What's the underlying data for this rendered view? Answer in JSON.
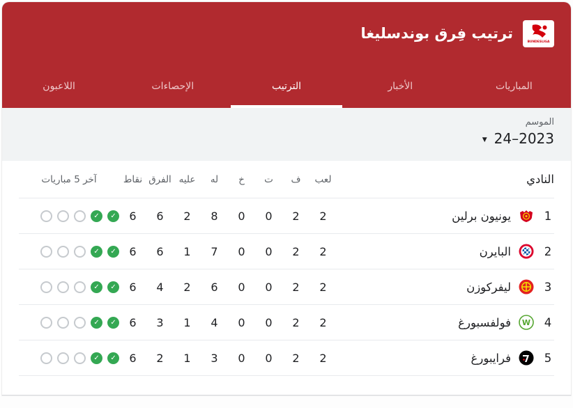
{
  "header": {
    "title": "ترتيب فِرق بوندسليغا",
    "logo_text": "BUNDESLIGA"
  },
  "tabs": [
    {
      "label": "المباريات",
      "active": false
    },
    {
      "label": "الأخبار",
      "active": false
    },
    {
      "label": "الترتيب",
      "active": true
    },
    {
      "label": "الإحصاءات",
      "active": false
    },
    {
      "label": "اللاعبون",
      "active": false
    }
  ],
  "season": {
    "label": "الموسم",
    "value": "2023–24"
  },
  "table": {
    "columns": {
      "club": "النادي",
      "played": "لعب",
      "won": "ف",
      "drawn": "ت",
      "lost": "خ",
      "gf": "له",
      "ga": "عليه",
      "diff": "الفرق",
      "points": "نقاط",
      "last5": "آخر 5 مباريات"
    },
    "rows": [
      {
        "rank": "1",
        "name": "يونيون برلين",
        "crest": "union-berlin",
        "played": "2",
        "won": "2",
        "drawn": "0",
        "lost": "0",
        "gf": "8",
        "ga": "2",
        "diff": "6",
        "points": "6",
        "last5": [
          "win",
          "win",
          "none",
          "none",
          "none"
        ]
      },
      {
        "rank": "2",
        "name": "البايرن",
        "crest": "bayern",
        "played": "2",
        "won": "2",
        "drawn": "0",
        "lost": "0",
        "gf": "7",
        "ga": "1",
        "diff": "6",
        "points": "6",
        "last5": [
          "win",
          "win",
          "none",
          "none",
          "none"
        ]
      },
      {
        "rank": "3",
        "name": "ليفركوزن",
        "crest": "leverkusen",
        "played": "2",
        "won": "2",
        "drawn": "0",
        "lost": "0",
        "gf": "6",
        "ga": "2",
        "diff": "4",
        "points": "6",
        "last5": [
          "win",
          "win",
          "none",
          "none",
          "none"
        ]
      },
      {
        "rank": "4",
        "name": "فولفسبورغ",
        "crest": "wolfsburg",
        "played": "2",
        "won": "2",
        "drawn": "0",
        "lost": "0",
        "gf": "4",
        "ga": "1",
        "diff": "3",
        "points": "6",
        "last5": [
          "win",
          "win",
          "none",
          "none",
          "none"
        ]
      },
      {
        "rank": "5",
        "name": "فرايبورغ",
        "crest": "freiburg",
        "played": "2",
        "won": "2",
        "drawn": "0",
        "lost": "0",
        "gf": "3",
        "ga": "1",
        "diff": "2",
        "points": "6",
        "last5": [
          "win",
          "win",
          "none",
          "none",
          "none"
        ]
      }
    ]
  },
  "colors": {
    "header_red": "#b12a2f",
    "win_green": "#34a853",
    "season_bg": "#f1f3f4",
    "row_divider": "#e8eaed",
    "muted_text": "#5f6368",
    "dark_text": "#202124"
  }
}
